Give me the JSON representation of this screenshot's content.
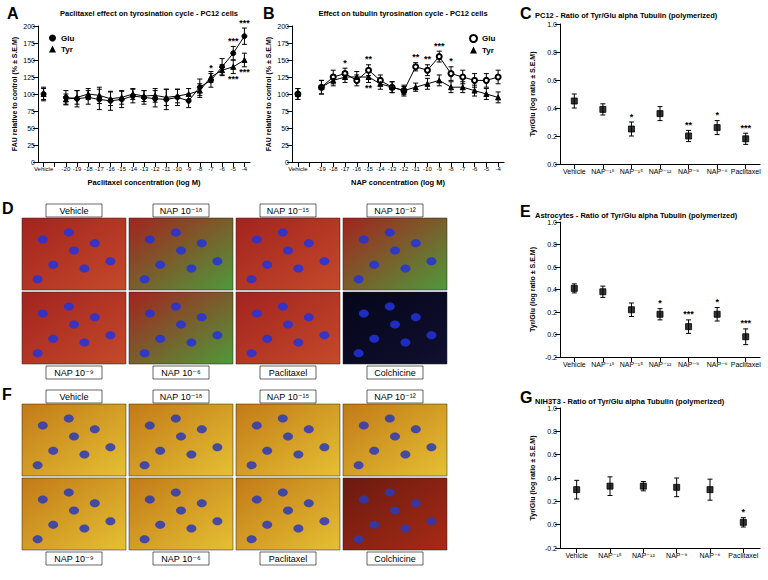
{
  "chart_data": [
    {
      "panel_label": "A",
      "type": "line",
      "title": "Paclitaxel effect on tyrosination cycle - PC12 cells",
      "x_label": "Paclitaxel concentration (log M)",
      "y_label": "FAU relative to control (% ± S.E.M)",
      "categories": [
        "Vehicle",
        null,
        "-20",
        "-19",
        "-18",
        "-17",
        "-16",
        "-15",
        "-14",
        "-13",
        "-12",
        "-11",
        "-10",
        "-9",
        "-8",
        "-7",
        "-6",
        "-5",
        "-4"
      ],
      "ylim": [
        0,
        200
      ],
      "yticks": [
        0,
        25,
        50,
        75,
        100,
        125,
        150,
        175,
        200
      ],
      "grid": false,
      "legend": "top-left",
      "series": [
        {
          "name": "Glu",
          "color": "#000000",
          "marker": "circle",
          "values": [
            100,
            null,
            95,
            93,
            95,
            92,
            90,
            92,
            97,
            95,
            93,
            92,
            95,
            90,
            110,
            120,
            140,
            160,
            185
          ],
          "errors": [
            10,
            null,
            10,
            12,
            10,
            15,
            14,
            12,
            10,
            10,
            12,
            15,
            12,
            10,
            12,
            10,
            12,
            10,
            12
          ],
          "significance": [
            null,
            null,
            null,
            null,
            null,
            null,
            null,
            null,
            null,
            null,
            null,
            null,
            null,
            null,
            null,
            "*",
            null,
            "***",
            "***"
          ]
        },
        {
          "name": "Tyr",
          "color": "#000000",
          "marker": "triangle",
          "values": [
            100,
            null,
            92,
            95,
            100,
            98,
            93,
            95,
            100,
            97,
            98,
            95,
            97,
            100,
            105,
            125,
            135,
            140,
            150
          ],
          "errors": [
            8,
            null,
            8,
            10,
            8,
            12,
            10,
            10,
            8,
            8,
            10,
            12,
            10,
            8,
            10,
            8,
            8,
            10,
            10
          ],
          "significance": [
            null,
            null,
            null,
            null,
            null,
            null,
            null,
            null,
            null,
            null,
            null,
            null,
            null,
            null,
            null,
            null,
            null,
            "***",
            "***"
          ]
        }
      ]
    },
    {
      "panel_label": "B",
      "type": "line",
      "title": "Effect on tubulin tyrosination cycle - PC12 cells",
      "x_label": "NAP concentration (log M)",
      "y_label": "FAU relative to control (% ± S.E.M)",
      "categories": [
        "Vehicle",
        null,
        "-19",
        "-18",
        "-17",
        "-16",
        "-15",
        "-14",
        "-13",
        "-12",
        "-11",
        "-10",
        "-9",
        "-8",
        "-7",
        "-6",
        "-5",
        "-4"
      ],
      "ylim": [
        0,
        200
      ],
      "yticks": [
        0,
        25,
        50,
        75,
        100,
        125,
        150,
        175,
        200
      ],
      "grid": false,
      "legend": "top-right",
      "series": [
        {
          "name": "Glu",
          "color": "#000000",
          "marker": "open_circle",
          "values": [
            100,
            null,
            110,
            125,
            130,
            120,
            135,
            120,
            110,
            105,
            140,
            135,
            155,
            130,
            125,
            120,
            120,
            125
          ],
          "errors": [
            8,
            null,
            10,
            10,
            8,
            8,
            8,
            8,
            8,
            8,
            6,
            8,
            8,
            10,
            10,
            10,
            10,
            10
          ],
          "significance": [
            null,
            null,
            null,
            null,
            "*",
            null,
            "**",
            null,
            null,
            null,
            "**",
            "**",
            "***",
            "*",
            null,
            null,
            null,
            null
          ]
        },
        {
          "name": "Tyr",
          "color": "#000000",
          "marker": "triangle",
          "values": [
            100,
            null,
            110,
            120,
            125,
            125,
            125,
            115,
            110,
            105,
            110,
            115,
            120,
            110,
            110,
            105,
            100,
            95
          ],
          "errors": [
            8,
            null,
            10,
            8,
            8,
            8,
            8,
            8,
            8,
            6,
            6,
            8,
            8,
            8,
            8,
            8,
            8,
            8
          ],
          "significance": [
            null,
            null,
            null,
            null,
            null,
            null,
            "**",
            null,
            null,
            null,
            null,
            null,
            null,
            null,
            null,
            null,
            null,
            null
          ]
        }
      ]
    },
    {
      "panel_label": "C",
      "type": "scatter",
      "title": "PC12 - Ratio of Tyr/Glu alpha Tubulin (polymerized)",
      "y_label": "Tyr/Glu (log ratio ± S.E.M)",
      "categories": [
        "Vehicle",
        "NAP⁻¹⁸",
        "NAP⁻¹⁵",
        "NAP⁻¹²",
        "NAP⁻⁹",
        "NAP⁻⁶",
        "Paclitaxel"
      ],
      "ylim": [
        0,
        1
      ],
      "yticks": [
        {
          "value": 0,
          "label": "0.0"
        },
        0.2,
        0.4,
        0.6,
        0.8,
        {
          "value": 1,
          "label": "1.0"
        }
      ],
      "grid": false,
      "color": "#000000",
      "marker": "square",
      "values": [
        0.45,
        0.39,
        0.25,
        0.36,
        0.2,
        0.26,
        0.18
      ],
      "errors": [
        0.05,
        0.04,
        0.05,
        0.05,
        0.04,
        0.05,
        0.04
      ],
      "significance": [
        null,
        null,
        "*",
        null,
        "**",
        "*",
        "***"
      ]
    },
    {
      "panel_label": "E",
      "type": "scatter",
      "title": "Astrocytes - Ratio of Tyr/Glu alpha Tubulin (polymerized)",
      "y_label": "Tyr/Glu (log ratio ± S.E.M)",
      "categories": [
        "Vehicle",
        "NAP⁻¹⁸",
        "NAP⁻¹⁵",
        "NAP⁻¹²",
        "NAP⁻⁹",
        "NAP⁻⁶",
        "Paclitaxel"
      ],
      "ylim": [
        -0.2,
        1
      ],
      "yticks": [
        -0.2,
        {
          "value": 0,
          "label": "0.0"
        },
        0.2,
        0.4,
        0.6,
        0.8,
        {
          "value": 1,
          "label": "1.0"
        }
      ],
      "grid": false,
      "color": "#000000",
      "marker": "square",
      "values": [
        0.41,
        0.38,
        0.22,
        0.18,
        0.07,
        0.18,
        -0.02
      ],
      "errors": [
        0.04,
        0.05,
        0.06,
        0.05,
        0.06,
        0.06,
        0.07
      ],
      "significance": [
        null,
        null,
        null,
        "*",
        "***",
        "*",
        "***"
      ]
    },
    {
      "panel_label": "G",
      "type": "scatter",
      "title": "NIH3T3 - Ratio of Tyr/Glu alpha Tubulin (polymerized)",
      "y_label": "Tyr/Glu (log ratio ± S.E.M)",
      "categories": [
        "Vehicle",
        "NAP⁻¹⁵",
        "NAP⁻¹²",
        "NAP⁻⁹",
        "NAP⁻⁶",
        "Paclitaxel"
      ],
      "ylim": [
        -0.2,
        1
      ],
      "yticks": [
        -0.2,
        {
          "value": 0,
          "label": "0.0"
        },
        0.2,
        0.4,
        0.6,
        0.8,
        {
          "value": 1,
          "label": "1.0"
        }
      ],
      "grid": false,
      "color": "#000000",
      "marker": "square",
      "values": [
        0.3,
        0.33,
        0.33,
        0.32,
        0.3,
        0.02
      ],
      "errors": [
        0.08,
        0.08,
        0.04,
        0.08,
        0.09,
        0.04
      ],
      "significance": [
        null,
        null,
        null,
        null,
        null,
        "*"
      ]
    }
  ],
  "image_panels": [
    {
      "panel_label": "D",
      "images": [
        "Vehicle",
        "NAP 10⁻¹⁸",
        "NAP 10⁻¹⁵",
        "NAP 10⁻¹²",
        "NAP 10⁻⁹",
        "NAP 10⁻⁶",
        "Paclitaxel",
        "Colchicine"
      ]
    },
    {
      "panel_label": "F",
      "images": [
        "Vehicle",
        "NAP 10⁻¹⁸",
        "NAP 10⁻¹⁵",
        "NAP 10⁻¹²",
        "NAP 10⁻⁹",
        "NAP 10⁻⁶",
        "Paclitaxel",
        "Colchicine"
      ]
    }
  ]
}
